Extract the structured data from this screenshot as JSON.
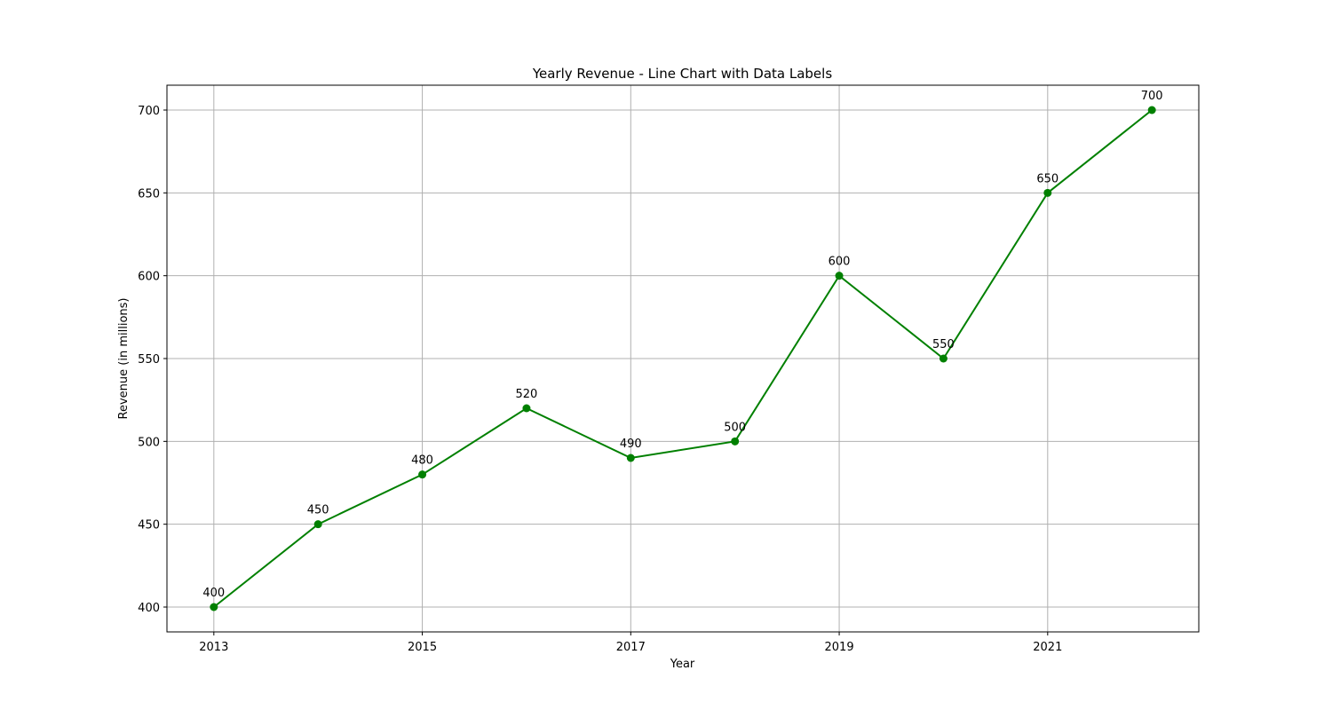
{
  "chart_data": {
    "type": "line",
    "title": "Yearly Revenue - Line Chart with Data Labels",
    "xlabel": "Year",
    "ylabel": "Revenue (in millions)",
    "x": [
      2013,
      2014,
      2015,
      2016,
      2017,
      2018,
      2019,
      2020,
      2021,
      2022
    ],
    "series": [
      {
        "values": [
          400,
          450,
          480,
          520,
          490,
          500,
          600,
          550,
          650,
          700
        ]
      }
    ],
    "data_labels": [
      "400",
      "450",
      "480",
      "520",
      "490",
      "500",
      "600",
      "550",
      "650",
      "700"
    ],
    "x_ticks": [
      2013,
      2015,
      2017,
      2019,
      2021
    ],
    "x_tick_labels": [
      "2013",
      "2015",
      "2017",
      "2019",
      "2021"
    ],
    "y_ticks": [
      400,
      450,
      500,
      550,
      600,
      650,
      700
    ],
    "y_tick_labels": [
      "400",
      "450",
      "500",
      "550",
      "600",
      "650",
      "700"
    ],
    "xlim": [
      2012.55,
      2022.45
    ],
    "ylim": [
      385,
      715
    ],
    "grid": true,
    "marker": "circle",
    "line_color": "#008000",
    "grid_color": "#b0b0b0"
  }
}
